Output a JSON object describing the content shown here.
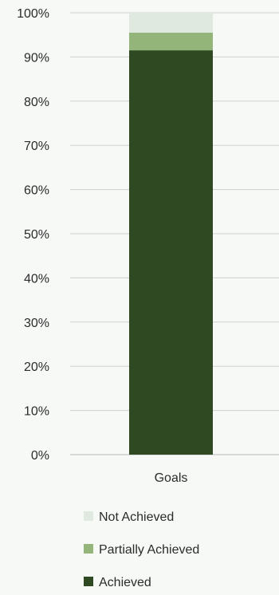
{
  "chart_data": {
    "type": "bar",
    "stacked": true,
    "categories": [
      "Goals"
    ],
    "series": [
      {
        "name": "Achieved",
        "values": [
          91.5
        ],
        "color": "#2f4a22"
      },
      {
        "name": "Partially Achieved",
        "values": [
          4
        ],
        "color": "#94b57a"
      },
      {
        "name": "Not Achieved",
        "values": [
          4.5
        ],
        "color": "#dfe9df"
      }
    ],
    "ylim": [
      0,
      100
    ],
    "yticks": [
      "0%",
      "10%",
      "20%",
      "30%",
      "40%",
      "50%",
      "60%",
      "70%",
      "80%",
      "90%",
      "100%"
    ],
    "grid": true,
    "legend_position": "bottom",
    "legend_order": [
      "Not Achieved",
      "Partially Achieved",
      "Achieved"
    ]
  }
}
